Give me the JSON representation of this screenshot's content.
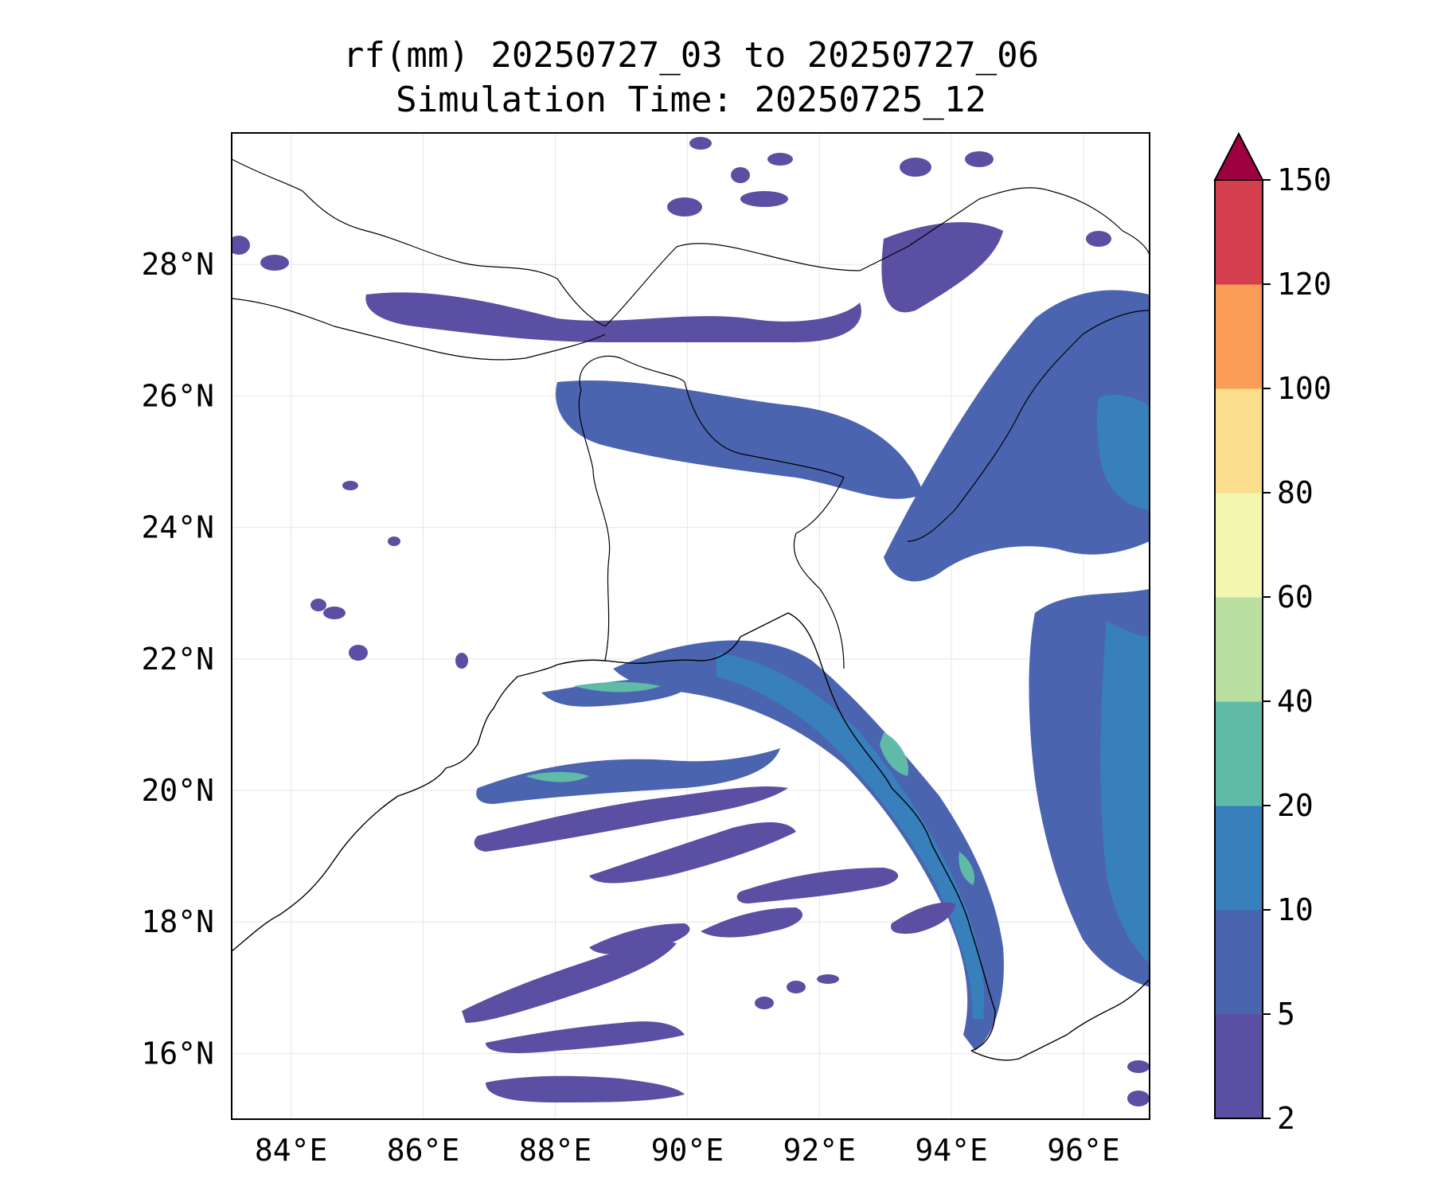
{
  "title": {
    "line1": "rf(mm) 20250727_03 to 20250727_06",
    "line2": "Simulation Time: 20250725_12"
  },
  "map": {
    "lon_range": [
      83.1,
      97.0
    ],
    "lat_range": [
      15.0,
      30.0
    ],
    "lon_ticks": [
      "84°E",
      "86°E",
      "88°E",
      "90°E",
      "92°E",
      "94°E",
      "96°E"
    ],
    "lat_ticks": [
      "16°N",
      "18°N",
      "20°N",
      "22°N",
      "24°N",
      "26°N",
      "28°N"
    ],
    "gridlines": true
  },
  "colorbar": {
    "levels": [
      "2",
      "5",
      "10",
      "20",
      "40",
      "60",
      "80",
      "100",
      "120",
      "150"
    ],
    "colors": [
      "#5b4fa3",
      "#4b64b0",
      "#3880bc",
      "#5fbaa8",
      "#b9e0a0",
      "#f2f7b0",
      "#fbdf8d",
      "#f99d58",
      "#d43f4f"
    ],
    "extend_color": "#9e0142",
    "extend": "max"
  },
  "chart_data": {
    "type": "heatmap",
    "variable": "rf(mm)",
    "levels": [
      2,
      5,
      10,
      20,
      40,
      60,
      80,
      100,
      120,
      150
    ],
    "xrange": [
      83.1,
      97.0
    ],
    "yrange": [
      15.0,
      30.0
    ],
    "bands": [
      {
        "lon": [
          89.0,
          95.2
        ],
        "lat": [
          22.5,
          17.0
        ],
        "level": 10
      },
      {
        "lon": [
          86.8,
          91.0
        ],
        "lat": [
          20.2,
          20.9
        ],
        "level": 5
      },
      {
        "lon": [
          88.0,
          90.5
        ],
        "lat": [
          21.9,
          21.5
        ],
        "level": 10
      },
      {
        "lon": [
          95.0,
          97.0
        ],
        "lat": [
          19.0,
          25.0
        ],
        "level": 10
      },
      {
        "lon": [
          91.5,
          96.0
        ],
        "lat": [
          26.5,
          24.5
        ],
        "level": 5
      },
      {
        "lon": [
          86.0,
          92.5
        ],
        "lat": [
          27.5,
          27.0
        ],
        "level": 5
      },
      {
        "lon": [
          87.5,
          92.0
        ],
        "lat": [
          15.3,
          16.5
        ],
        "level": 5
      },
      {
        "lon": [
          87.5,
          90.5
        ],
        "lat": [
          16.5,
          18.0
        ],
        "level": 5
      }
    ]
  }
}
